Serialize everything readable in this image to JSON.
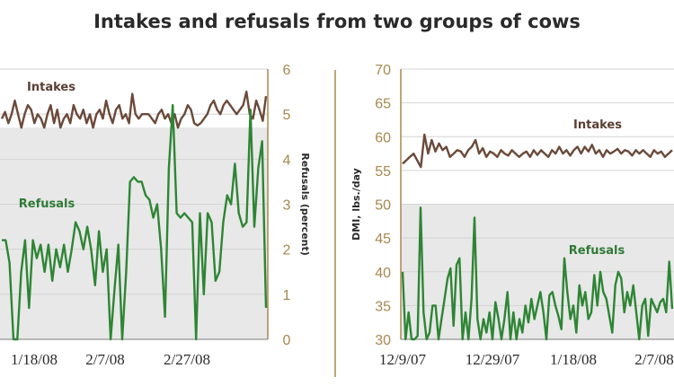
{
  "title": "Intakes and refusals from two groups of cows",
  "colors": {
    "intake": "#6b4a3a",
    "refusal": "#2e8534",
    "axis": "#a8874f",
    "grid": "#d4d4d4",
    "band": "#e8e8e8"
  },
  "chart_data": [
    {
      "type": "line",
      "title": "",
      "xlabel": "",
      "ylabel": "Refusals (percent)",
      "ylim": [
        0,
        6
      ],
      "yticks": [
        "0",
        "1",
        "2",
        "3",
        "4",
        "5",
        "6"
      ],
      "x_tick_labels": [
        "1/18/08",
        "2/7/08",
        "2/27/08"
      ],
      "series": [
        {
          "name": "Intakes",
          "values": [
            4.9,
            5.05,
            4.8,
            5.0,
            5.3,
            5.0,
            4.7,
            5.0,
            5.2,
            5.1,
            4.8,
            5.0,
            4.9,
            4.7,
            5.0,
            5.2,
            4.8,
            5.1,
            4.7,
            4.9,
            5.0,
            4.8,
            5.2,
            5.0,
            4.9,
            5.1,
            4.8,
            5.0,
            4.7,
            5.0,
            5.1,
            4.9,
            5.3,
            5.0,
            4.8,
            5.1,
            5.2,
            4.9,
            5.0,
            4.8,
            5.45,
            5.0,
            4.9,
            5.0,
            5.0,
            5.0,
            4.9,
            4.8,
            5.0,
            5.1,
            4.9,
            5.0,
            4.8,
            5.0,
            4.7,
            4.9,
            5.0,
            5.2,
            5.1,
            4.8,
            4.75,
            4.8,
            4.9,
            5.0,
            5.2,
            5.3,
            5.1,
            5.0,
            5.2,
            5.3,
            5.2,
            5.1,
            5.0,
            5.1,
            5.2,
            5.5,
            5.0,
            4.9,
            5.3,
            5.1,
            4.85,
            5.4
          ]
        },
        {
          "name": "Refusals",
          "values": [
            2.2,
            2.2,
            1.7,
            0,
            0,
            1.5,
            2.2,
            0.7,
            2.2,
            1.8,
            2.1,
            1.5,
            2.1,
            1.3,
            2.0,
            1.6,
            2.1,
            1.5,
            2.0,
            2.6,
            2.4,
            2.0,
            2.5,
            2.0,
            1.2,
            2.4,
            1.5,
            2.0,
            0,
            1.1,
            2.1,
            0,
            1.5,
            3.5,
            3.6,
            3.5,
            3.5,
            3.2,
            3.1,
            2.7,
            3.0,
            2.0,
            0.5,
            3.8,
            5.2,
            2.8,
            2.7,
            2.8,
            2.7,
            2.6,
            0,
            2.8,
            1.0,
            2.8,
            2.6,
            1.3,
            1.5,
            2.6,
            3.2,
            3.0,
            3.9,
            2.8,
            2.5,
            2.6,
            5.1,
            2.5,
            3.8,
            4.4,
            0.7
          ]
        }
      ]
    },
    {
      "type": "line",
      "title": "",
      "xlabel": "",
      "ylabel": "DMI, lbs./day",
      "ylim": [
        30,
        70
      ],
      "yticks": [
        "30",
        "35",
        "40",
        "45",
        "50",
        "55",
        "60",
        "65",
        "70"
      ],
      "x_tick_labels": [
        "12/9/07",
        "12/29/07",
        "1/18/08",
        "2/7/08"
      ],
      "series": [
        {
          "name": "Intakes",
          "values": [
            56.0,
            56.5,
            57.0,
            57.5,
            56.5,
            55.5,
            60.3,
            57.5,
            59.5,
            57.8,
            59.0,
            58.0,
            58.5,
            57.0,
            57.5,
            58.0,
            57.8,
            57.0,
            58.0,
            58.5,
            59.5,
            57.5,
            58.3,
            57.0,
            57.8,
            57.5,
            57.0,
            58.0,
            57.5,
            57.2,
            58.0,
            57.5,
            57.0,
            57.5,
            57.8,
            57.0,
            58.0,
            57.3,
            58.0,
            57.5,
            57.0,
            58.0,
            57.5,
            58.5,
            57.5,
            58.0,
            57.2,
            58.0,
            58.5,
            57.5,
            58.5,
            57.8,
            58.8,
            57.5,
            58.0,
            57.0,
            58.0,
            57.5,
            57.8,
            58.2,
            57.5,
            58.0,
            57.8,
            57.2,
            58.0,
            57.5,
            58.0,
            57.5,
            57.0,
            58.0,
            57.5,
            57.8,
            57.0,
            57.5,
            58.0
          ]
        },
        {
          "name": "Refusals",
          "values": [
            40.0,
            30.0,
            34.0,
            30.0,
            30.0,
            30.5,
            49.5,
            34.0,
            30.0,
            31.0,
            35.0,
            35.0,
            30.0,
            33.0,
            36.0,
            39.0,
            40.5,
            32.0,
            41.0,
            42.0,
            30.0,
            34.0,
            30.0,
            36.0,
            48.0,
            33.0,
            30.0,
            33.0,
            31.0,
            34.0,
            30.0,
            35.5,
            33.0,
            30.0,
            33.0,
            37.0,
            30.0,
            34.0,
            30.0,
            33.0,
            31.0,
            35.0,
            32.5,
            36.0,
            33.0,
            35.0,
            37.0,
            34.0,
            30.0,
            36.5,
            37.0,
            35.0,
            33.5,
            31.5,
            42.0,
            37.0,
            33.0,
            35.0,
            31.0,
            38.0,
            35.0,
            37.0,
            33.0,
            34.0,
            39.5,
            35.0,
            40.0,
            37.0,
            36.0,
            33.5,
            31.0,
            38.0,
            40.0,
            39.0,
            34.0,
            37.0,
            35.0,
            38.0,
            34.0,
            30.0,
            35.0,
            36.0,
            30.5,
            36.0,
            35.0,
            34.0,
            35.5,
            36.0,
            34.0,
            41.5,
            34.5
          ]
        }
      ]
    }
  ]
}
